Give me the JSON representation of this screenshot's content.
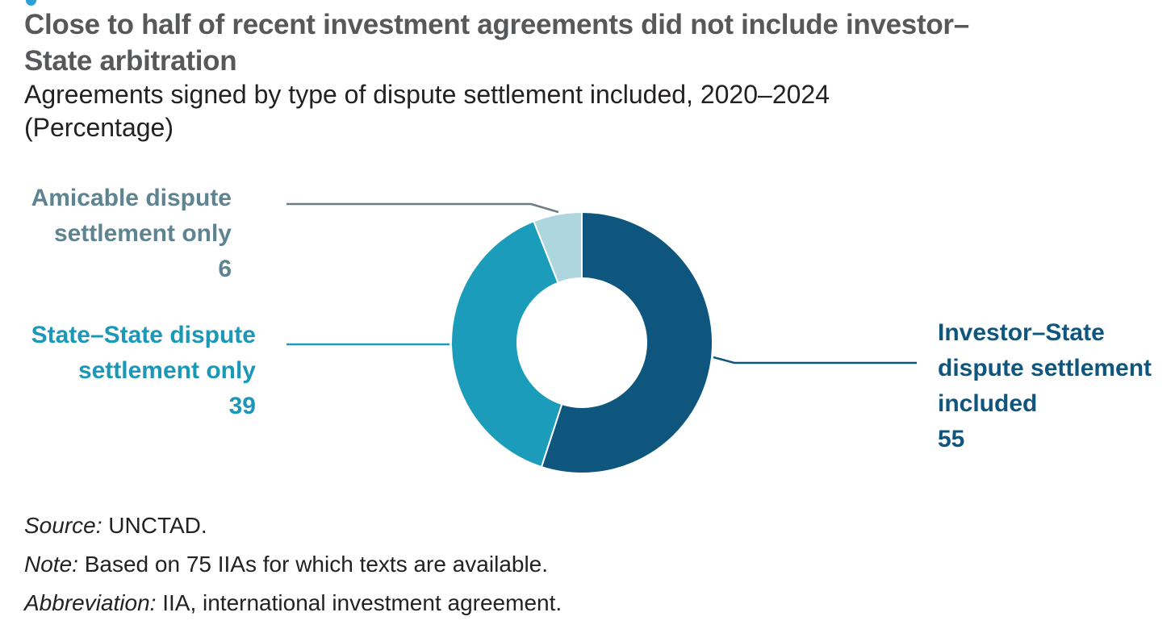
{
  "header": {
    "title_lines": [
      "Close to half of recent investment agreements did not include investor–",
      "State arbitration"
    ],
    "subtitle_lines": [
      "Agreements signed by type of dispute settlement included, 2020–2024",
      "(Percentage)"
    ]
  },
  "chart_data": {
    "type": "pie",
    "donut": true,
    "title": "Close to half of recent investment agreements did not include investor–State arbitration",
    "subtitle": "Agreements signed by type of dispute settlement included, 2020–2024",
    "unit": "Percentage",
    "start_angle_deg": 0,
    "direction": "clockwise",
    "total": 100,
    "legend_position": "callout-labels",
    "series": [
      {
        "id": "investor-state",
        "label": "Investor–State dispute settlement included",
        "value": 55,
        "color": "#0e567e",
        "label_color": "#0f567e",
        "leader_color": "#0e567e"
      },
      {
        "id": "state-state",
        "label": "State–State dispute settlement only",
        "value": 39,
        "color": "#1b9cba",
        "label_color": "#1b97b8",
        "leader_color": "#1b9cba"
      },
      {
        "id": "amicable",
        "label": "Amicable dispute settlement only",
        "value": 6,
        "color": "#aed6df",
        "label_color": "#5e8492",
        "leader_color": "#6b7e86"
      }
    ]
  },
  "labels": {
    "amicable": {
      "lines": [
        "Amicable dispute",
        "settlement only",
        "6"
      ]
    },
    "state": {
      "lines": [
        "State–State dispute",
        "settlement only",
        "39"
      ]
    },
    "investor": {
      "lines": [
        "Investor–State",
        "dispute settlement",
        "included",
        "55"
      ]
    }
  },
  "notes": [
    {
      "prefix": "Source:",
      "text": " UNCTAD."
    },
    {
      "prefix": "Note:",
      "text": " Based on 75 IIAs for which texts are available."
    },
    {
      "prefix": "Abbreviation:",
      "text": " IIA, international investment agreement."
    }
  ],
  "colors": {
    "figure_fragment_blue": "#2d9fd4",
    "title_gray": "#57585a",
    "body_text": "#242122",
    "background": "#ffffff"
  }
}
